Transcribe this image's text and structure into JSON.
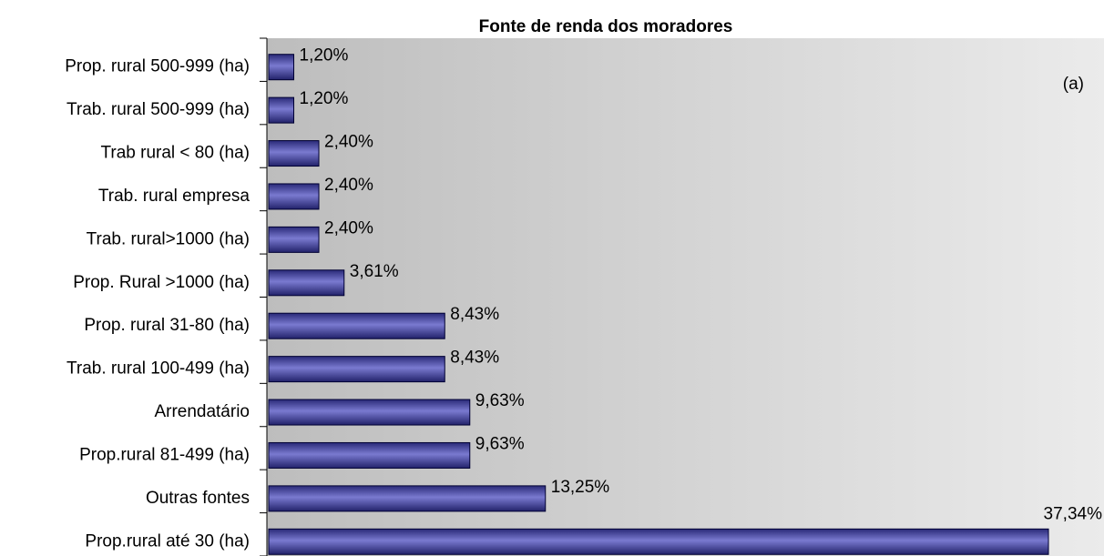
{
  "chart_data": {
    "type": "bar",
    "orientation": "horizontal",
    "title": "Fonte de renda dos moradores",
    "annotation": "(a)",
    "categories": [
      "Prop. rural 500-999 (ha)",
      "Trab. rural 500-999 (ha)",
      "Trab rural < 80 (ha)",
      "Trab. rural empresa",
      "Trab. rural>1000 (ha)",
      "Prop. Rural >1000 (ha)",
      "Prop. rural 31-80 (ha)",
      "Trab. rural 100-499 (ha)",
      "Arrendatário",
      "Prop.rural 81-499 (ha)",
      "Outras fontes",
      "Prop.rural até 30 (ha)"
    ],
    "values": [
      1.2,
      1.2,
      2.4,
      2.4,
      2.4,
      3.61,
      8.43,
      8.43,
      9.63,
      9.63,
      13.25,
      37.34
    ],
    "value_labels": [
      "1,20%",
      "1,20%",
      "2,40%",
      "2,40%",
      "2,40%",
      "3,61%",
      "8,43%",
      "8,43%",
      "9,63%",
      "9,63%",
      "13,25%",
      "37,34%"
    ],
    "color": "#3c3c9c",
    "xlim": [
      0,
      40
    ]
  }
}
